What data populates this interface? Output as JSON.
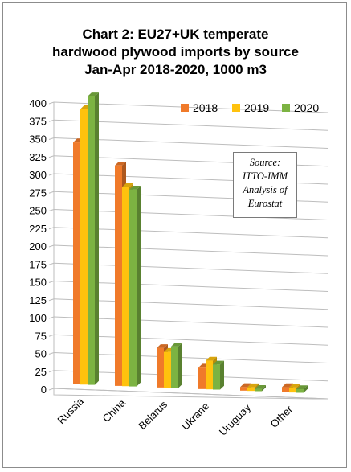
{
  "title_lines": [
    "Chart 2: EU27+UK temperate",
    "hardwood plywood imports by source",
    "Jan-Apr 2018-2020, 1000 m3"
  ],
  "source_lines": [
    "Source:",
    "ITTO-IMM",
    "Analysis of",
    "Eurostat"
  ],
  "colors": {
    "2018": "#f07a2a",
    "2019": "#ffc20e",
    "2020": "#7cb342"
  },
  "chart_data": {
    "type": "bar",
    "title": "Chart 2: EU27+UK temperate hardwood plywood imports by source Jan-Apr 2018-2020, 1000 m3",
    "categories": [
      "Russia",
      "China",
      "Belarus",
      "Ukrane",
      "Uruguay",
      "Other"
    ],
    "series": [
      {
        "name": "2018",
        "values": [
          338,
          308,
          55,
          30,
          5,
          7
        ]
      },
      {
        "name": "2019",
        "values": [
          385,
          278,
          50,
          40,
          5,
          7
        ]
      },
      {
        "name": "2020",
        "values": [
          403,
          275,
          58,
          35,
          3,
          5
        ]
      }
    ],
    "ylim": [
      0,
      400
    ],
    "yticks": [
      0,
      25,
      50,
      75,
      100,
      125,
      150,
      175,
      200,
      225,
      250,
      275,
      300,
      325,
      350,
      375,
      400
    ],
    "xlabel": "",
    "ylabel": "",
    "grid": true,
    "legend_position": "top-right"
  }
}
